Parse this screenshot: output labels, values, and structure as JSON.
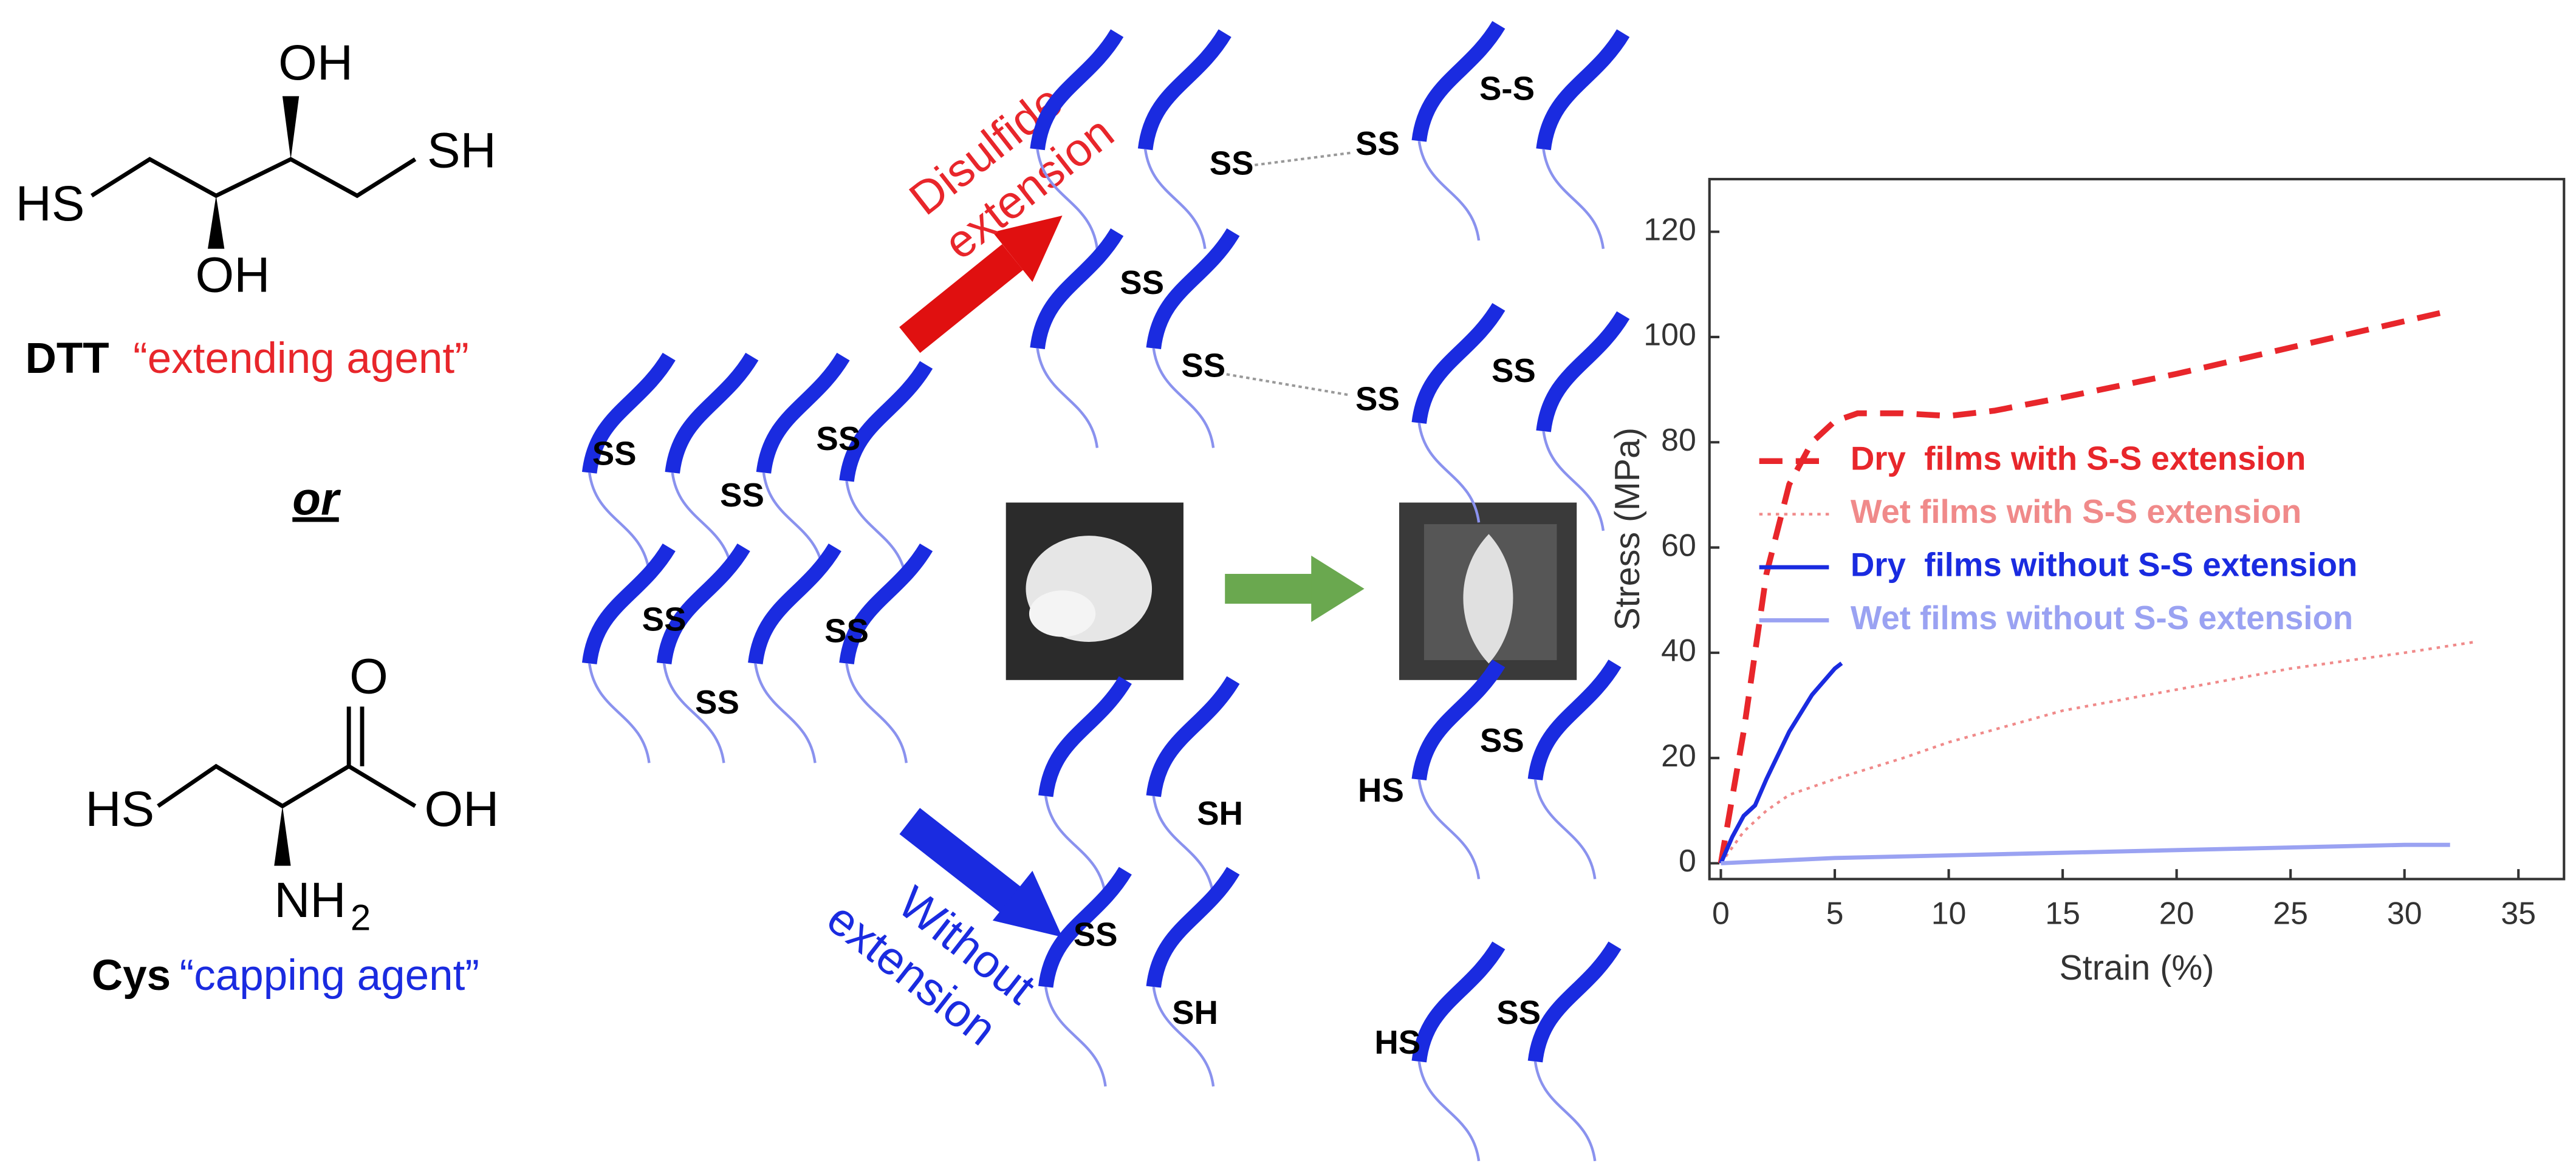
{
  "molecules": {
    "dtt": {
      "atoms": [
        "OH",
        "HS",
        "SH",
        "OH"
      ],
      "name": "DTT",
      "role": "“extending agent”"
    },
    "conjunction": "or",
    "cys": {
      "atoms": [
        "O",
        "HS",
        "OH",
        "NH",
        "2"
      ],
      "name": "Cys",
      "role": "“capping agent”"
    }
  },
  "arrows": {
    "extension": [
      "Disulfide",
      "extension"
    ],
    "without": [
      "Without",
      "extension"
    ]
  },
  "bond_labels": [
    "SS",
    "SS",
    "SS",
    "SS",
    "SS",
    "SS",
    "SS",
    "SS",
    "S-S",
    "SS",
    "SS",
    "SS",
    "SS",
    "SS",
    "HS",
    "SH",
    "SS",
    "SH",
    "HS",
    "SS"
  ],
  "chart_data": {
    "type": "line",
    "x_label": "Strain (%)",
    "y_label": "Stress (MPa)",
    "xlim": [
      -0.5,
      37
    ],
    "ylim": [
      -3,
      130
    ],
    "xticks": [
      0,
      5,
      10,
      15,
      20,
      25,
      30,
      35
    ],
    "yticks": [
      0,
      20,
      40,
      60,
      80,
      100,
      120
    ],
    "legend": "upper left",
    "series": [
      {
        "name": "Dry  films with S-S extension",
        "color": "#e8262b",
        "style": "dashed",
        "x": [
          0,
          1,
          2,
          3,
          4,
          5,
          6,
          8,
          10,
          12,
          15,
          20,
          25,
          30,
          32
        ],
        "values": [
          0,
          25,
          55,
          72,
          80,
          84,
          85.5,
          85.5,
          85,
          86,
          88.5,
          93,
          98,
          103,
          105
        ]
      },
      {
        "name": "Wet films with S-S extension",
        "color": "#f08a8a",
        "style": "dotted",
        "x": [
          0,
          1,
          2,
          3,
          5,
          8,
          10,
          15,
          20,
          25,
          30,
          33
        ],
        "values": [
          0,
          6,
          10,
          13,
          16,
          20,
          23,
          29,
          33,
          37,
          40,
          42
        ]
      },
      {
        "name": "Dry  films without S-S extension",
        "color": "#1a2be0",
        "style": "solid",
        "x": [
          0,
          0.5,
          1,
          1.5,
          2,
          3,
          4,
          5,
          5.3
        ],
        "values": [
          0,
          5,
          9,
          11,
          16,
          25,
          32,
          37,
          38
        ]
      },
      {
        "name": "Wet films without S-S extension",
        "color": "#9aa2f2",
        "style": "solid",
        "x": [
          0,
          5,
          10,
          15,
          20,
          25,
          30,
          32
        ],
        "values": [
          0,
          1,
          1.5,
          2,
          2.5,
          3,
          3.5,
          3.5
        ]
      }
    ]
  }
}
